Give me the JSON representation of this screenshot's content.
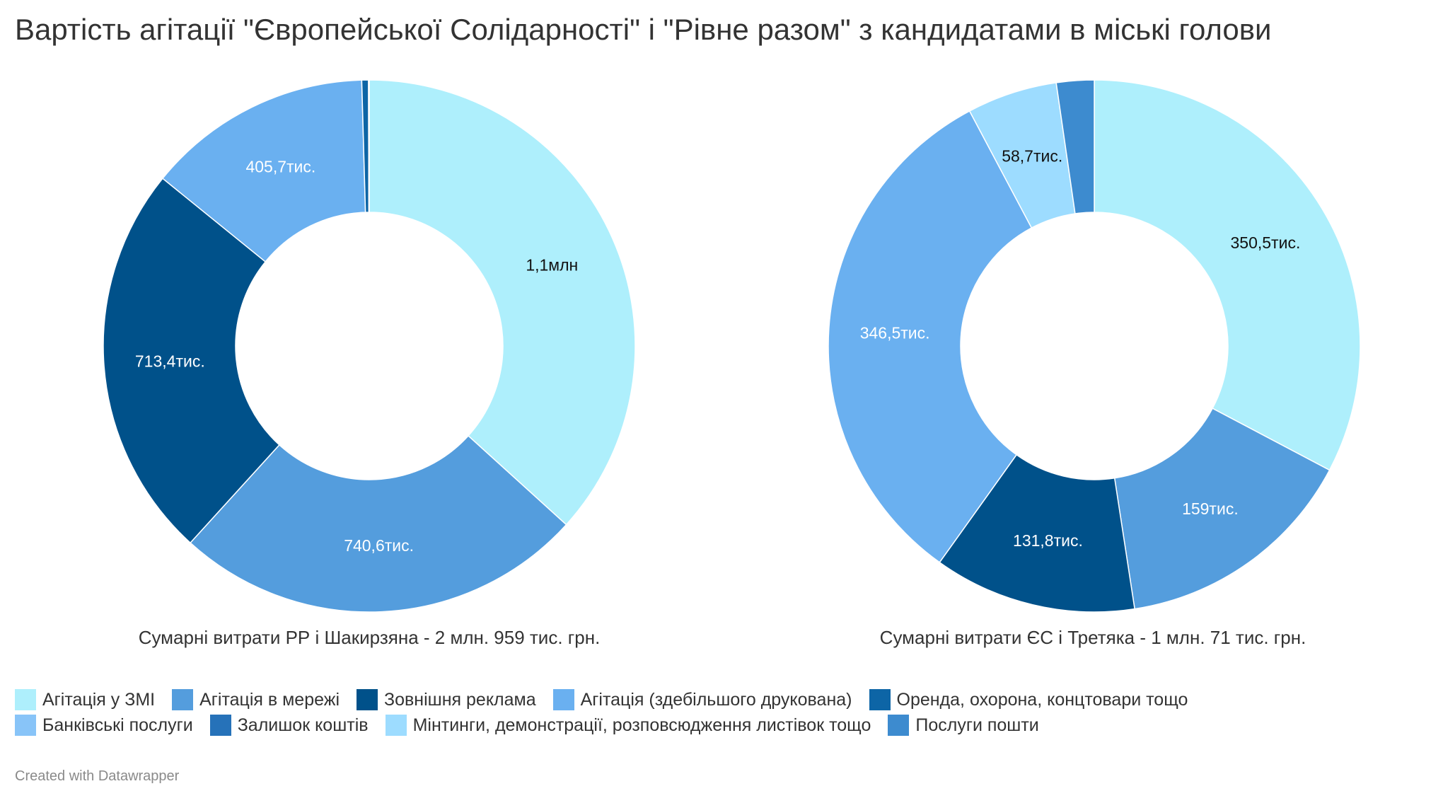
{
  "title": "Вартість агітації \"Європейської Солідарності\" і \"Рівне разом\" з кандидатами в міські голови",
  "credit": "Created with Datawrapper",
  "legend": [
    {
      "label": "Агітація у ЗМІ",
      "color": "#aeeffc"
    },
    {
      "label": "Агітація в мережі",
      "color": "#549ddd"
    },
    {
      "label": "Зовнішня реклама",
      "color": "#00518a"
    },
    {
      "label": "Агітація (здебільшого друкована)",
      "color": "#6ab0f0"
    },
    {
      "label": "Оренда, охорона, концтовари тощо",
      "color": "#0d65a6"
    },
    {
      "label": "Банківські послуги",
      "color": "#88c4f8"
    },
    {
      "label": "Залишок коштів",
      "color": "#2672b9"
    },
    {
      "label": "Мінтинги, демонстрації, розповсюдження листівок тощо",
      "color": "#9ddcff"
    },
    {
      "label": "Послуги пошти",
      "color": "#3d8bcf"
    }
  ],
  "chart_data": [
    {
      "type": "pie",
      "donut": true,
      "caption": "Сумарні витрати РР і Шакирзяна - 2 млн. 959 тис. грн.",
      "slices": [
        {
          "category": "Агітація у ЗМІ",
          "value": 1087,
          "label": "1,1млн",
          "color": "#aeeffc",
          "label_color": "#111111"
        },
        {
          "category": "Агітація в мережі",
          "value": 740.6,
          "label": "740,6тис.",
          "color": "#549ddd",
          "label_color": "#ffffff"
        },
        {
          "category": "Зовнішня реклама",
          "value": 713.4,
          "label": "713,4тис.",
          "color": "#00518a",
          "label_color": "#ffffff"
        },
        {
          "category": "Агітація (здебільшого друкована)",
          "value": 405.7,
          "label": "405,7тис.",
          "color": "#6ab0f0",
          "label_color": "#ffffff"
        },
        {
          "category": "Оренда, охорона, концтовари тощо",
          "value": 12,
          "label": "",
          "color": "#0d65a6",
          "label_color": "#ffffff"
        },
        {
          "category": "Банківські послуги",
          "value": 0.9,
          "label": "",
          "color": "#88c4f8",
          "label_color": "#ffffff"
        },
        {
          "category": "Залишок коштів",
          "value": 0.4,
          "label": "",
          "color": "#2672b9",
          "label_color": "#ffffff"
        }
      ]
    },
    {
      "type": "pie",
      "donut": true,
      "caption": "Сумарні витрати ЄС і Третяка - 1 млн. 71 тис. грн.",
      "slices": [
        {
          "category": "Агітація у ЗМІ",
          "value": 350.5,
          "label": "350,5тис.",
          "color": "#aeeffc",
          "label_color": "#111111"
        },
        {
          "category": "Агітація в мережі",
          "value": 159,
          "label": "159тис.",
          "color": "#549ddd",
          "label_color": "#ffffff"
        },
        {
          "category": "Зовнішня реклама",
          "value": 131.8,
          "label": "131,8тис.",
          "color": "#00518a",
          "label_color": "#ffffff"
        },
        {
          "category": "Агітація (здебільшого друкована)",
          "value": 346.5,
          "label": "346,5тис.",
          "color": "#6ab0f0",
          "label_color": "#ffffff"
        },
        {
          "category": "Мінтинги, демонстрації, розповсюдження листівок тощо",
          "value": 58.7,
          "label": "58,7тис.",
          "color": "#9ddcff",
          "label_color": "#111111"
        },
        {
          "category": "Послуги пошти",
          "value": 24.5,
          "label": "",
          "color": "#3d8bcf",
          "label_color": "#ffffff"
        }
      ]
    }
  ]
}
